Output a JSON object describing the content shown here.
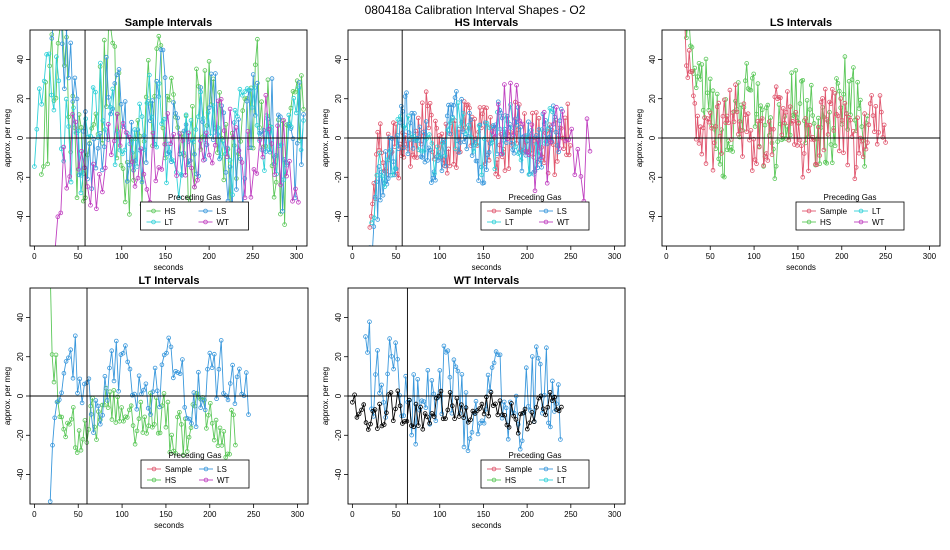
{
  "figure": {
    "title": "080418a   Calibration Interval Shapes - O2",
    "colors": {
      "Sample": "#e0566e",
      "HS": "#5cc85a",
      "LS": "#3a98dc",
      "LT": "#2fd1d8",
      "WT": "#c040c0",
      "base": "#000000"
    }
  },
  "chart_data": [
    {
      "type": "line",
      "title": "Sample Intervals",
      "xlabel": "seconds",
      "ylabel": "approx. per meg",
      "xlim": [
        -5,
        312
      ],
      "ylim": [
        -55,
        55
      ],
      "xticks": [
        0,
        50,
        100,
        150,
        200,
        250,
        300
      ],
      "yticks": [
        -40,
        -20,
        0,
        20,
        40
      ],
      "vline": 58,
      "legend": {
        "title": "Preceding Gas",
        "location": "bottom-center",
        "entries": [
          "HS",
          "LS",
          "LT",
          "WT"
        ]
      },
      "series": [
        {
          "name": "HS",
          "x_start": 8,
          "x_end": 310,
          "step": 2.4,
          "amp": 22,
          "noise": 30,
          "decay": 10,
          "tau": 40,
          "offset": 4,
          "seed": 11
        },
        {
          "name": "LS",
          "x_start": 20,
          "x_end": 310,
          "step": 2.4,
          "amp": 18,
          "noise": 26,
          "decay": 70,
          "tau": 15,
          "offset": 2,
          "seed": 23
        },
        {
          "name": "LT",
          "x_start": 0,
          "x_end": 310,
          "step": 2.8,
          "amp": 14,
          "noise": 22,
          "decay": 12,
          "tau": 60,
          "offset": 1,
          "seed": 37
        },
        {
          "name": "WT",
          "x_start": 20,
          "x_end": 305,
          "step": 3.4,
          "amp": 10,
          "noise": 20,
          "decay": -45,
          "tau": 15,
          "offset": -6,
          "seed": 41
        }
      ]
    },
    {
      "type": "line",
      "title": "HS Intervals",
      "xlabel": "seconds",
      "ylabel": "approx. per meg",
      "xlim": [
        -5,
        312
      ],
      "ylim": [
        -55,
        55
      ],
      "xticks": [
        0,
        50,
        100,
        150,
        200,
        250,
        300
      ],
      "yticks": [
        -40,
        -20,
        0,
        20,
        40
      ],
      "vline": 57,
      "legend": {
        "title": "Preceding Gas",
        "location": "bottom-right",
        "entries": [
          "Sample",
          "LS",
          "LT",
          "WT"
        ]
      },
      "series": [
        {
          "name": "Sample",
          "x_start": 20,
          "x_end": 250,
          "step": 1.5,
          "amp": 8,
          "noise": 16,
          "decay": -60,
          "tau": 8,
          "offset": 0,
          "seed": 5
        },
        {
          "name": "LS",
          "x_start": 20,
          "x_end": 240,
          "step": 1.5,
          "amp": 8,
          "noise": 16,
          "decay": -70,
          "tau": 8,
          "offset": 0,
          "seed": 7
        },
        {
          "name": "LT",
          "x_start": 22,
          "x_end": 230,
          "step": 3.0,
          "amp": 6,
          "noise": 14,
          "decay": -40,
          "tau": 8,
          "offset": 0,
          "seed": 13
        },
        {
          "name": "WT",
          "x_start": 160,
          "x_end": 275,
          "step": 3.5,
          "amp": 12,
          "noise": 24,
          "decay": 0,
          "tau": 8,
          "offset": 0,
          "seed": 19
        }
      ]
    },
    {
      "type": "line",
      "title": "LS Intervals",
      "xlabel": "seconds",
      "ylabel": "approx. per meg",
      "xlim": [
        -5,
        312
      ],
      "ylim": [
        -55,
        55
      ],
      "xticks": [
        0,
        50,
        100,
        150,
        200,
        250,
        300
      ],
      "yticks": [
        -40,
        -20,
        0,
        20,
        40
      ],
      "vline": null,
      "legend": {
        "title": "Preceding Gas",
        "location": "bottom-right",
        "entries": [
          "Sample",
          "LT",
          "HS",
          "WT"
        ]
      },
      "series": [
        {
          "name": "HS",
          "x_start": 18,
          "x_end": 230,
          "step": 1.6,
          "amp": 12,
          "noise": 20,
          "decay": 70,
          "tau": 12,
          "offset": 10,
          "seed": 29
        },
        {
          "name": "Sample",
          "x_start": 18,
          "x_end": 250,
          "step": 1.6,
          "amp": 9,
          "noise": 16,
          "decay": 60,
          "tau": 10,
          "offset": 4,
          "seed": 31
        }
      ]
    },
    {
      "type": "line",
      "title": "LT Intervals",
      "xlabel": "seconds",
      "ylabel": "approx. per meg",
      "xlim": [
        -5,
        312
      ],
      "ylim": [
        -55,
        55
      ],
      "xticks": [
        0,
        50,
        100,
        150,
        200,
        250,
        300
      ],
      "yticks": [
        -40,
        -20,
        0,
        20,
        40
      ],
      "vline": 60,
      "legend": {
        "title": "Preceding Gas",
        "location": "bottom-center",
        "entries": [
          "Sample",
          "LS",
          "HS",
          "WT"
        ]
      },
      "series": [
        {
          "name": "HS",
          "x_start": 18,
          "x_end": 230,
          "step": 2.2,
          "amp": 6,
          "noise": 14,
          "decay": 70,
          "tau": 4,
          "offset": -12,
          "seed": 43
        },
        {
          "name": "LS",
          "x_start": 18,
          "x_end": 245,
          "step": 2.6,
          "amp": 10,
          "noise": 16,
          "decay": -60,
          "tau": 4,
          "offset": 6,
          "seed": 47
        }
      ]
    },
    {
      "type": "line",
      "title": "WT Intervals",
      "xlabel": "seconds",
      "ylabel": "approx. per meg",
      "xlim": [
        -5,
        312
      ],
      "ylim": [
        -55,
        55
      ],
      "xticks": [
        0,
        50,
        100,
        150,
        200,
        250,
        300
      ],
      "yticks": [
        -40,
        -20,
        0,
        20,
        40
      ],
      "vline": 63,
      "legend": {
        "title": "Preceding Gas",
        "location": "bottom-right",
        "entries": [
          "Sample",
          "LS",
          "HS",
          "LT"
        ]
      },
      "series": [
        {
          "name": "LS",
          "x_start": 15,
          "x_end": 240,
          "step": 2.3,
          "amp": 10,
          "noise": 20,
          "decay": 50,
          "tau": 8,
          "offset": 0,
          "seed": 53
        },
        {
          "name": "base",
          "x_start": 0,
          "x_end": 240,
          "step": 2.6,
          "amp": 3,
          "noise": 8,
          "decay": 0,
          "tau": 8,
          "offset": -8,
          "seed": 59
        }
      ]
    }
  ]
}
